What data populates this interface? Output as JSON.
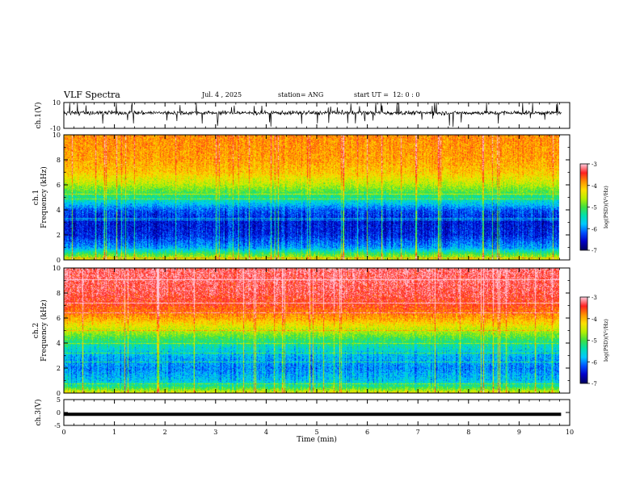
{
  "header": {
    "title": "VLF Spectra",
    "date": "Jul. 4 , 2025",
    "station": "station= ANG",
    "start_ut": "start UT =  12: 0 : 0"
  },
  "chart_data": [
    {
      "type": "line",
      "name": "ch1-waveform",
      "ylabel": "ch.1(V)",
      "ylim": [
        -10,
        10
      ],
      "yticks": [
        "10",
        "-10"
      ],
      "xlim": [
        0,
        10
      ],
      "baseline": 2,
      "description_values": {
        "noise_amplitude": 1.5,
        "spike_min": -9,
        "spike_max": 9
      }
    },
    {
      "type": "heatmap",
      "name": "ch1-spectrogram",
      "ylabel": "ch.1\nFrequency (kHz)",
      "ylim": [
        0,
        10
      ],
      "yticks": [
        "0",
        "2",
        "4",
        "6",
        "8",
        "10"
      ],
      "xlim": [
        0,
        9.83
      ],
      "colorbar": {
        "label": "log(PSD)(V²/Hz)",
        "range": [
          -7,
          -3
        ],
        "ticks": [
          "-3",
          "-4",
          "-5",
          "-6",
          "-7"
        ]
      },
      "profile": [
        [
          0,
          -4.3
        ],
        [
          0.5,
          -5.0
        ],
        [
          1,
          -5.9
        ],
        [
          2,
          -6.4
        ],
        [
          3,
          -6.5
        ],
        [
          4,
          -6.2
        ],
        [
          5,
          -5.3
        ],
        [
          6,
          -4.6
        ],
        [
          7,
          -4.1
        ],
        [
          8,
          -3.9
        ],
        [
          10,
          -3.8
        ]
      ]
    },
    {
      "type": "heatmap",
      "name": "ch2-spectrogram",
      "ylabel": "ch.2\nFrequency (kHz)",
      "ylim": [
        0,
        10
      ],
      "yticks": [
        "0",
        "2",
        "4",
        "6",
        "8",
        "10"
      ],
      "xlim": [
        0,
        9.83
      ],
      "colorbar": {
        "label": "log(PSD)(V²/Hz)",
        "range": [
          -7,
          -3
        ],
        "ticks": [
          "-3",
          "-4",
          "-5",
          "-6",
          "-7"
        ]
      },
      "profile": [
        [
          0,
          -4.2
        ],
        [
          0.5,
          -5.1
        ],
        [
          1,
          -5.7
        ],
        [
          2,
          -6.0
        ],
        [
          3,
          -5.8
        ],
        [
          4,
          -5.3
        ],
        [
          5,
          -4.6
        ],
        [
          6,
          -3.9
        ],
        [
          7,
          -3.5
        ],
        [
          8,
          -3.3
        ],
        [
          10,
          -3.2
        ]
      ]
    },
    {
      "type": "line",
      "name": "ch3-waveform",
      "ylabel": "ch.3(V)",
      "ylim": [
        -5,
        5
      ],
      "yticks": [
        "5",
        "0",
        "-5"
      ],
      "xlim": [
        0,
        10
      ],
      "x": [
        0,
        9.83
      ],
      "y": [
        -0.7,
        -0.7
      ]
    }
  ],
  "xaxis": {
    "label": "Time (min)",
    "ticks": [
      "0",
      "1",
      "2",
      "3",
      "4",
      "5",
      "6",
      "7",
      "8",
      "9",
      "10"
    ],
    "range": [
      0,
      10
    ]
  },
  "colors": {
    "colormap": [
      "#000060",
      "#0000c8",
      "#0050ff",
      "#00c8ff",
      "#00e0b0",
      "#40e040",
      "#b8f000",
      "#ffe000",
      "#ff9000",
      "#ff2020",
      "#ffc8d8"
    ]
  }
}
